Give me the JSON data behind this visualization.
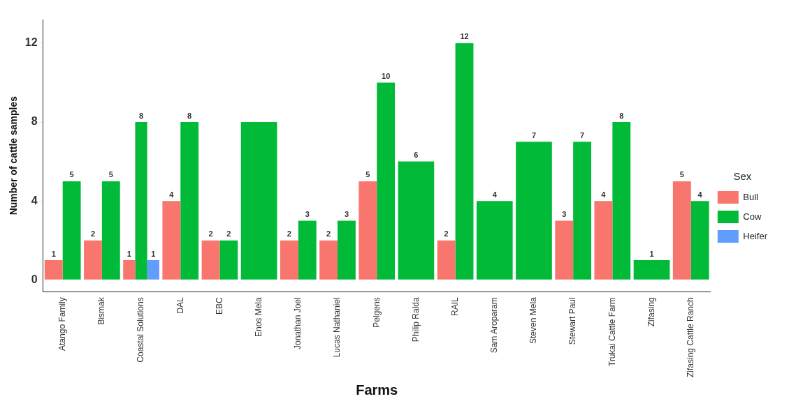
{
  "chart_data": {
    "type": "bar",
    "xlabel": "Farms",
    "ylabel": "Number of cattle samples",
    "legend_title": "Sex",
    "legend": "right",
    "grid": false,
    "categories": [
      "Atango Family",
      "Bismak",
      "Coastal Solutions",
      "DAL",
      "EBC",
      "Enos Mela",
      "Jonathan Joel",
      "Lucas Nathaniel",
      "Pelgens",
      "Philip Ralda",
      "RAIL",
      "Sam Aroparam",
      "Steven Mela",
      "Stewart Paul",
      "Trukai Cattle Farm",
      "Zifasing",
      "Zifasing Cattle Ranch"
    ],
    "ylim": [
      -0.6,
      13.2
    ],
    "yticks": [
      0,
      4,
      8,
      12
    ],
    "series": [
      {
        "name": "Bull",
        "color": "#f8766d",
        "values": [
          1,
          2,
          1,
          4,
          2,
          null,
          2,
          2,
          5,
          null,
          2,
          null,
          null,
          3,
          4,
          null,
          5
        ],
        "value_labels": [
          "1",
          "2",
          "1",
          "4",
          "2",
          null,
          "2",
          "2",
          "5",
          null,
          "2",
          null,
          null,
          "3",
          "4",
          null,
          "5"
        ]
      },
      {
        "name": "Cow",
        "color": "#00ba38",
        "values": [
          5,
          5,
          8,
          8,
          2,
          8,
          3,
          3,
          10,
          6,
          12,
          4,
          7,
          7,
          8,
          1,
          4
        ],
        "value_labels": [
          "5",
          "5",
          "8",
          "8",
          "2",
          null,
          "3",
          "3",
          "10",
          "6",
          "12",
          "4",
          "7",
          "7",
          "8",
          "1",
          "4"
        ]
      },
      {
        "name": "Heifer",
        "color": "#619cff",
        "values": [
          null,
          null,
          1,
          null,
          null,
          null,
          null,
          null,
          null,
          null,
          null,
          null,
          null,
          null,
          null,
          null,
          null
        ],
        "value_labels": [
          null,
          null,
          "1",
          null,
          null,
          null,
          null,
          null,
          null,
          null,
          null,
          null,
          null,
          null,
          null,
          null,
          null
        ]
      }
    ]
  }
}
